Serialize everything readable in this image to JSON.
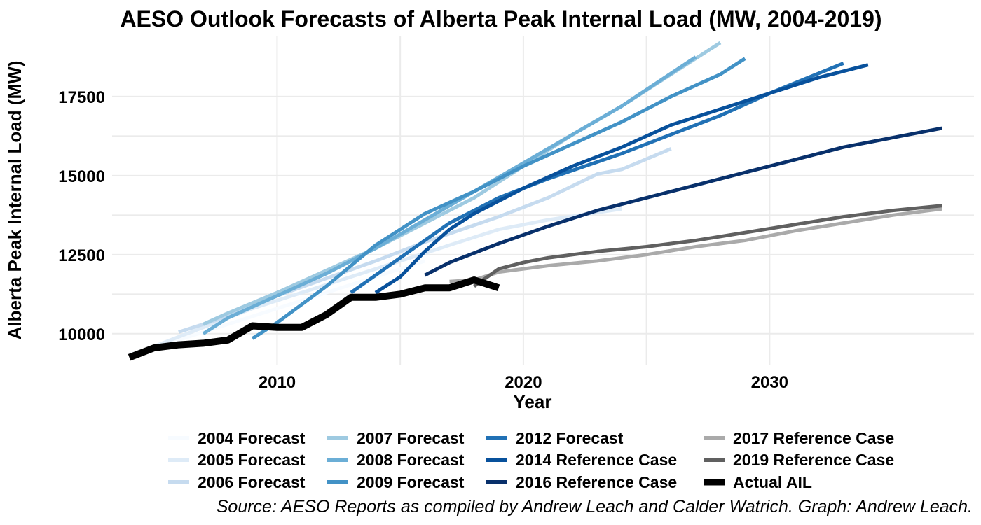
{
  "chart_data": {
    "type": "line",
    "title": "AESO Outlook Forecasts of Alberta Peak Internal Load (MW, 2004-2019)",
    "xlabel": "Year",
    "ylabel": "Alberta Peak Internal Load (MW)",
    "caption": "Source: AESO Reports as compiled by Andrew Leach and Calder Watrich. Graph: Andrew Leach.",
    "xlim": [
      2003.3,
      2038.3
    ],
    "ylim": [
      9000,
      19400
    ],
    "x_ticks": [
      2010,
      2020,
      2030
    ],
    "y_ticks": [
      10000,
      12500,
      15000,
      17500
    ],
    "grid": true,
    "legend_position": "bottom",
    "series": [
      {
        "name": "2004 Forecast",
        "color": "#f7fbff",
        "x": [
          2004,
          2006,
          2008,
          2010,
          2012,
          2014,
          2016
        ],
        "y": [
          9350,
          9800,
          10300,
          10800,
          11300,
          11800,
          12300
        ]
      },
      {
        "name": "2005 Forecast",
        "color": "#deebf7",
        "x": [
          2005,
          2007,
          2009,
          2011,
          2013,
          2015,
          2017,
          2019,
          2021,
          2024
        ],
        "y": [
          9600,
          10200,
          10800,
          11300,
          11800,
          12300,
          12800,
          13300,
          13600,
          13950
        ]
      },
      {
        "name": "2006 Forecast",
        "color": "#c6dbef",
        "x": [
          2006,
          2008,
          2010,
          2012,
          2014,
          2016,
          2019,
          2021,
          2023,
          2024,
          2026
        ],
        "y": [
          10050,
          10550,
          11200,
          11750,
          12300,
          12900,
          13700,
          14300,
          15050,
          15200,
          15850
        ]
      },
      {
        "name": "2007 Forecast",
        "color": "#9ecae1",
        "x": [
          2007,
          2008,
          2010,
          2012,
          2014,
          2016,
          2018,
          2020,
          2022,
          2024,
          2026,
          2028
        ],
        "y": [
          10300,
          10650,
          11300,
          12000,
          12700,
          13500,
          14300,
          15300,
          16300,
          17200,
          18200,
          19200
        ]
      },
      {
        "name": "2008 Forecast",
        "color": "#6baed6",
        "x": [
          2007,
          2008,
          2010,
          2012,
          2014,
          2016,
          2018,
          2020,
          2022,
          2024,
          2027
        ],
        "y": [
          10000,
          10500,
          11200,
          11900,
          12700,
          13600,
          14500,
          15400,
          16300,
          17200,
          18750
        ]
      },
      {
        "name": "2009 Forecast",
        "color": "#4292c6",
        "x": [
          2009,
          2010,
          2012,
          2014,
          2016,
          2018,
          2020,
          2022,
          2024,
          2026,
          2028,
          2029
        ],
        "y": [
          9850,
          10350,
          11500,
          12800,
          13800,
          14500,
          15300,
          16000,
          16700,
          17500,
          18200,
          18700
        ]
      },
      {
        "name": "2012 Forecast",
        "color": "#2171b5",
        "x": [
          2013,
          2015,
          2017,
          2019,
          2021,
          2024,
          2026,
          2028,
          2030,
          2033
        ],
        "y": [
          11300,
          12400,
          13500,
          14300,
          14900,
          15700,
          16300,
          16900,
          17600,
          18550
        ]
      },
      {
        "name": "2014 Reference Case",
        "color": "#08519c",
        "x": [
          2014,
          2015,
          2016,
          2017,
          2018,
          2020,
          2022,
          2024,
          2026,
          2028,
          2030,
          2032,
          2034
        ],
        "y": [
          11300,
          11800,
          12600,
          13300,
          13800,
          14600,
          15300,
          15900,
          16600,
          17100,
          17600,
          18100,
          18500
        ]
      },
      {
        "name": "2016 Reference Case",
        "color": "#08306b",
        "x": [
          2016,
          2017,
          2019,
          2021,
          2023,
          2025,
          2027,
          2029,
          2031,
          2033,
          2035,
          2037
        ],
        "y": [
          11850,
          12250,
          12850,
          13400,
          13900,
          14300,
          14700,
          15100,
          15500,
          15900,
          16200,
          16500
        ]
      },
      {
        "name": "2017 Reference Case",
        "color": "#aaaaaa",
        "x": [
          2017,
          2018,
          2019,
          2021,
          2023,
          2025,
          2027,
          2029,
          2031,
          2033,
          2035,
          2037
        ],
        "y": [
          11650,
          11700,
          11950,
          12150,
          12300,
          12500,
          12750,
          12950,
          13250,
          13500,
          13750,
          13950
        ]
      },
      {
        "name": "2019 Reference Case",
        "color": "#606060",
        "x": [
          2018,
          2019,
          2020,
          2021,
          2022,
          2023,
          2025,
          2027,
          2029,
          2031,
          2033,
          2035,
          2037
        ],
        "y": [
          11500,
          12050,
          12250,
          12400,
          12500,
          12600,
          12750,
          12950,
          13200,
          13450,
          13700,
          13900,
          14050
        ]
      },
      {
        "name": "Actual AIL",
        "color": "#000000",
        "x": [
          2004,
          2005,
          2006,
          2007,
          2008,
          2009,
          2010,
          2011,
          2012,
          2013,
          2014,
          2015,
          2016,
          2017,
          2018,
          2019
        ],
        "y": [
          9250,
          9550,
          9650,
          9700,
          9800,
          10250,
          10200,
          10200,
          10600,
          11150,
          11150,
          11250,
          11450,
          11450,
          11700,
          11450
        ]
      }
    ]
  }
}
